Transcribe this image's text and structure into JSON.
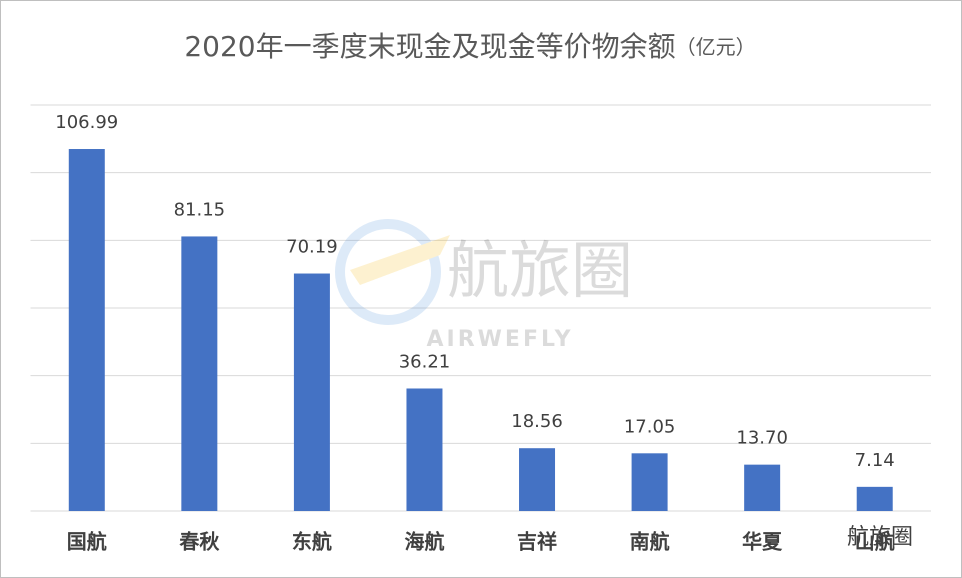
{
  "chart_data": {
    "type": "bar",
    "title": "2020年一季度末现金及现金等价物余额",
    "unit": "（亿元）",
    "categories": [
      "国航",
      "春秋",
      "东航",
      "海航",
      "吉祥",
      "南航",
      "华夏",
      "山航"
    ],
    "values": [
      106.99,
      81.15,
      70.19,
      36.21,
      18.56,
      17.05,
      13.7,
      7.14
    ],
    "value_labels": [
      "106.99",
      "81.15",
      "70.19",
      "36.21",
      "18.56",
      "17.05",
      "13.70",
      "7.14"
    ],
    "color": "#4472c4",
    "ylim": [
      0,
      120
    ],
    "yticks": [
      0,
      20,
      40,
      60,
      80,
      100,
      120
    ],
    "grid": true
  },
  "watermark": {
    "text": "航旅圈",
    "subtext": "AIRWEFLY"
  },
  "footer_logo": "航旅圈"
}
